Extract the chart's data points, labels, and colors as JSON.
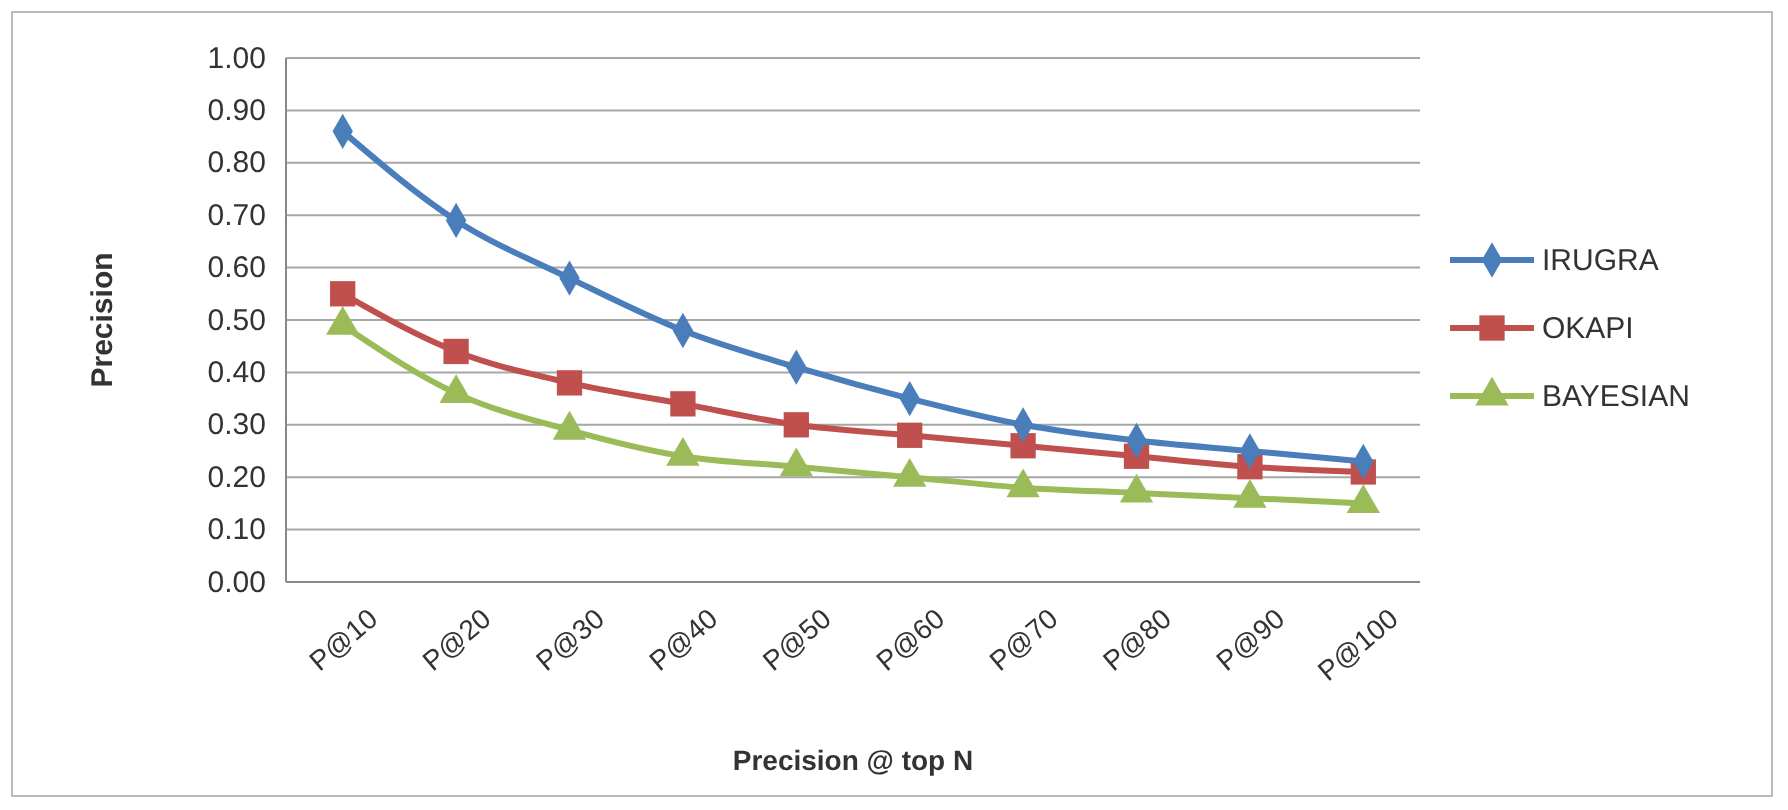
{
  "chart_data": {
    "type": "line",
    "xlabel": "Precision @ top N",
    "ylabel": "Precision",
    "categories": [
      "P@10",
      "P@20",
      "P@30",
      "P@40",
      "P@50",
      "P@60",
      "P@70",
      "P@80",
      "P@90",
      "P@100"
    ],
    "series": [
      {
        "name": "IRUGRA",
        "color": "#4a7ebb",
        "marker": "diamond",
        "values": [
          0.86,
          0.69,
          0.58,
          0.48,
          0.41,
          0.35,
          0.3,
          0.27,
          0.25,
          0.23
        ]
      },
      {
        "name": "OKAPI",
        "color": "#c0504d",
        "marker": "square",
        "values": [
          0.55,
          0.44,
          0.38,
          0.34,
          0.3,
          0.28,
          0.26,
          0.24,
          0.22,
          0.21
        ]
      },
      {
        "name": "BAYESIAN",
        "color": "#9bbb59",
        "marker": "triangle",
        "values": [
          0.49,
          0.36,
          0.29,
          0.24,
          0.22,
          0.2,
          0.18,
          0.17,
          0.16,
          0.15
        ]
      }
    ],
    "ylim": [
      0,
      1
    ],
    "yticks": [
      {
        "value": 0,
        "label": "0.00"
      },
      {
        "value": 0.1,
        "label": "0.10"
      },
      {
        "value": 0.2,
        "label": "0.20"
      },
      {
        "value": 0.3,
        "label": "0.30"
      },
      {
        "value": 0.4,
        "label": "0.40"
      },
      {
        "value": 0.5,
        "label": "0.50"
      },
      {
        "value": 0.6,
        "label": "0.60"
      },
      {
        "value": 0.7,
        "label": "0.70"
      },
      {
        "value": 0.8,
        "label": "0.80"
      },
      {
        "value": 0.9,
        "label": "0.90"
      },
      {
        "value": 1,
        "label": "1.00"
      }
    ],
    "grid": "y",
    "legend": "right"
  }
}
